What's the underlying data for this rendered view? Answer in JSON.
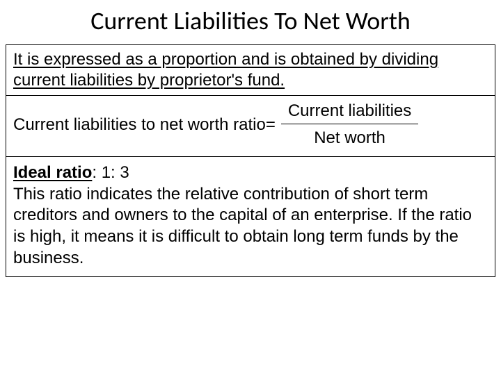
{
  "title": "Current Liabilities To Net Worth",
  "description": "It is expressed as a proportion and is obtained by dividing current liabilities by proprietor's fund.",
  "formula": {
    "label": "Current liabilities to net worth ratio=",
    "numerator": "Current liabilities",
    "denominator": "Net worth"
  },
  "ideal": {
    "label": "Ideal ratio",
    "value": ": 1: 3"
  },
  "explanation": "This ratio indicates the relative contribution of short term creditors and owners to the capital of an enterprise. If the ratio is high, it means it is difficult to obtain long term funds by the business.",
  "styling": {
    "background_color": "#ffffff",
    "text_color": "#000000",
    "border_color": "#000000",
    "title_fontsize": 36,
    "body_fontsize": 24,
    "title_font": "Calibri",
    "body_font": "Arial"
  }
}
